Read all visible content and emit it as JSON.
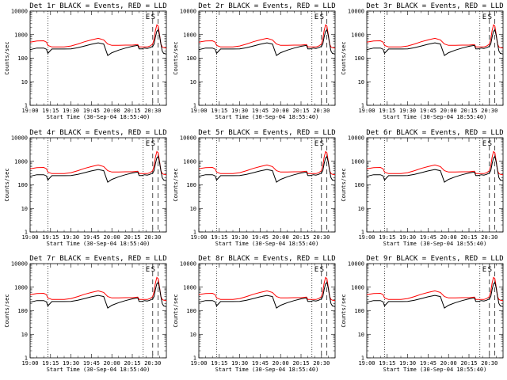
{
  "chart_data": {
    "type": "line",
    "y_scale": "log",
    "ylim": [
      1,
      10000
    ],
    "yticks": [
      "1",
      "10",
      "100",
      "1000",
      "10000"
    ],
    "xticks": [
      "19:00",
      "19:15",
      "19:30",
      "19:45",
      "20:00",
      "20:15",
      "20:30"
    ],
    "ylabel": "Counts/sec",
    "xlabel": "Start Time (30-Sep-04 18:55:40)",
    "x_start_min": 1140,
    "x_end_min": 1240,
    "marker_letters": [
      "E",
      "S"
    ],
    "vlines_dotted": [
      1153,
      1223
    ],
    "vlines_dashed": [
      1230,
      1234
    ],
    "colors": {
      "events": "#000000",
      "lld": "#ff0000"
    },
    "panels": [
      {
        "title": "Det 1r BLACK = Events, RED = LLD"
      },
      {
        "title": "Det 2r BLACK = Events, RED = LLD"
      },
      {
        "title": "Det 3r BLACK = Events, RED = LLD"
      },
      {
        "title": "Det 4r BLACK = Events, RED = LLD"
      },
      {
        "title": "Det 5r BLACK = Events, RED = LLD"
      },
      {
        "title": "Det 6r BLACK = Events, RED = LLD"
      },
      {
        "title": "Det 7r BLACK = Events, RED = LLD"
      },
      {
        "title": "Det 8r BLACK = Events, RED = LLD"
      },
      {
        "title": "Det 9r BLACK = Events, RED = LLD"
      }
    ],
    "series": [
      {
        "x": [
          1140,
          1145,
          1150,
          1152,
          1153,
          1156,
          1160,
          1165,
          1170,
          1175,
          1180,
          1185,
          1190,
          1194,
          1197,
          1200,
          1205,
          1210,
          1215,
          1219,
          1220,
          1222,
          1224,
          1226,
          1228,
          1230,
          1231,
          1232,
          1233,
          1234,
          1235,
          1236,
          1237,
          1238,
          1240
        ],
        "events": [
          230,
          270,
          270,
          240,
          160,
          245,
          245,
          245,
          250,
          280,
          330,
          390,
          450,
          400,
          130,
          170,
          220,
          270,
          320,
          350,
          250,
          250,
          270,
          260,
          280,
          320,
          400,
          800,
          1400,
          1600,
          900,
          400,
          200,
          160,
          150
        ],
        "lld": [
          480,
          540,
          550,
          480,
          350,
          300,
          300,
          300,
          330,
          400,
          500,
          600,
          700,
          600,
          400,
          350,
          350,
          360,
          360,
          380,
          300,
          300,
          300,
          300,
          330,
          400,
          650,
          1500,
          2600,
          2300,
          1000,
          400,
          300,
          280,
          270
        ]
      }
    ]
  }
}
